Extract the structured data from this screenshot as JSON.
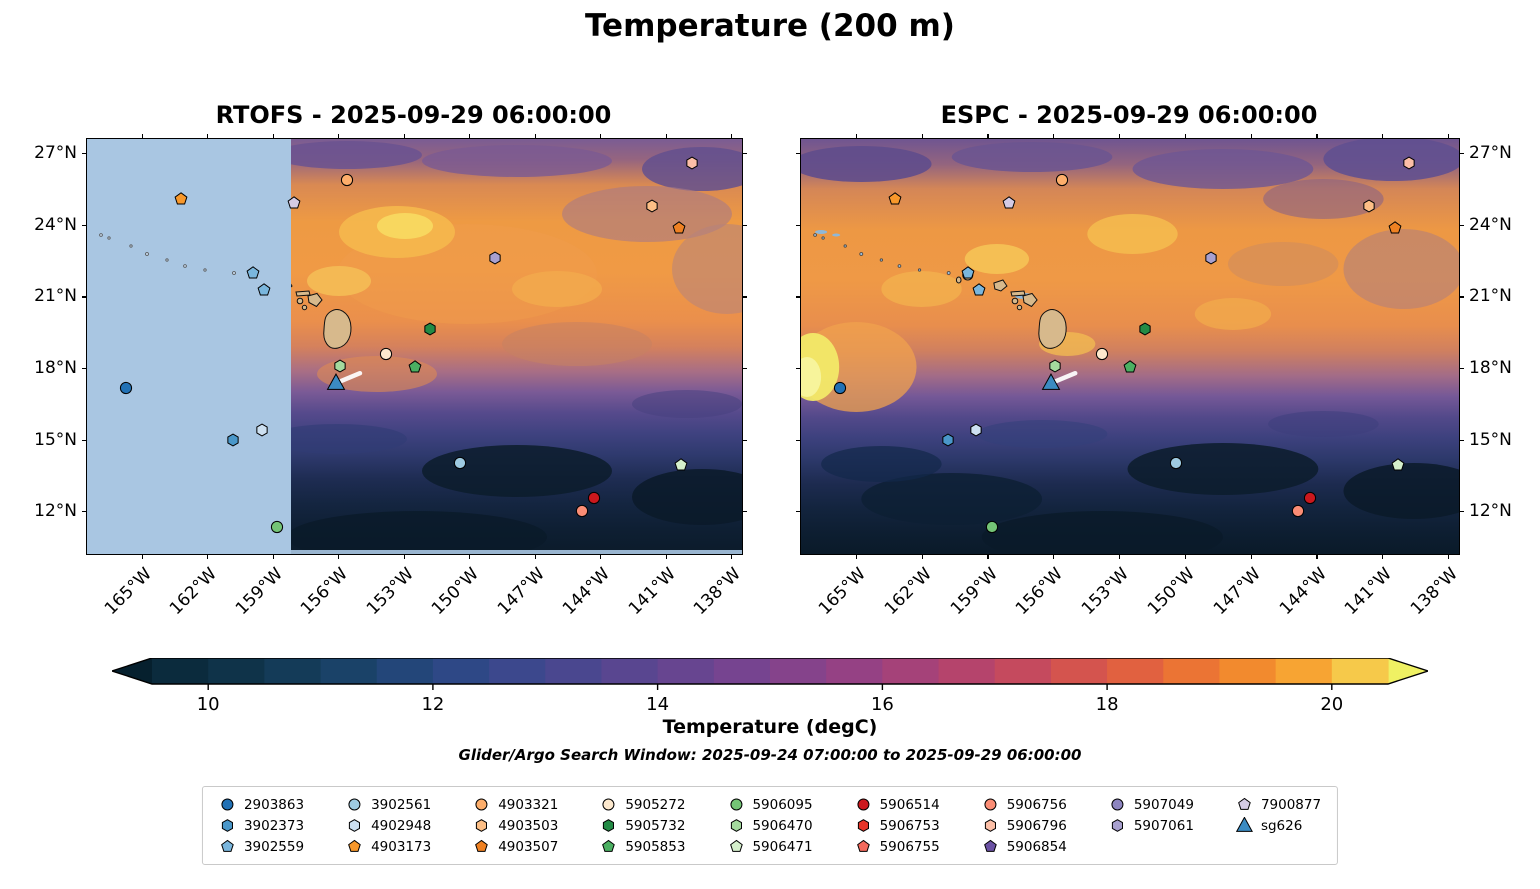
{
  "title": "Temperature (200 m)",
  "subtitle": "Glider/Argo Search Window: 2025-09-24 07:00:00 to 2025-09-29 06:00:00",
  "chart_data": {
    "type": "heatmap",
    "variable": "Temperature",
    "units": "degC",
    "depth": "200 m",
    "search_window": {
      "start": "2025-09-24 07:00:00",
      "end": "2025-09-29 06:00:00"
    },
    "panels": [
      {
        "model": "RTOFS",
        "valid_time": "2025-09-29 06:00:00",
        "title": "RTOFS - 2025-09-29 06:00:00",
        "ylabel_side": "left",
        "has_nodata_region": true
      },
      {
        "model": "ESPC",
        "valid_time": "2025-09-29 06:00:00",
        "title": "ESPC - 2025-09-29 06:00:00",
        "ylabel_side": "right",
        "has_nodata_region": false
      }
    ],
    "axes": {
      "lon_range": [
        -167.5,
        -137.5
      ],
      "lat_range": [
        10.2,
        27.6
      ],
      "lon_tick_values": [
        -165,
        -162,
        -159,
        -156,
        -153,
        -150,
        -147,
        -144,
        -141,
        -138
      ],
      "lon_ticks": [
        "165°W",
        "162°W",
        "159°W",
        "156°W",
        "153°W",
        "150°W",
        "147°W",
        "144°W",
        "141°W",
        "138°W"
      ],
      "lat_tick_values": [
        27,
        24,
        21,
        18,
        15,
        12
      ],
      "lat_ticks": [
        "27°N",
        "24°N",
        "21°N",
        "18°N",
        "15°N",
        "12°N"
      ]
    },
    "colorbar": {
      "label": "Temperature (degC)",
      "vmin": 9.5,
      "vmax": 20.5,
      "ticks": [
        10,
        12,
        14,
        16,
        18,
        20
      ],
      "under_color": "#06202e",
      "over_color": "#eff163",
      "segment_colors": [
        "#0b2b3d",
        "#0f3349",
        "#143b58",
        "#1a4268",
        "#234679",
        "#2e4886",
        "#3c488d",
        "#4a478f",
        "#594690",
        "#674590",
        "#764490",
        "#85438b",
        "#954184",
        "#a54279",
        "#b5446c",
        "#c54a5e",
        "#d4544e",
        "#e16140",
        "#eb7434",
        "#f28a2e",
        "#f7a433",
        "#f6c94a"
      ]
    },
    "platforms": {
      "2903863": {
        "shape": "circle",
        "color": "#2171b5"
      },
      "3902373": {
        "shape": "hexagon",
        "color": "#4a97c9"
      },
      "3902559": {
        "shape": "pentagon",
        "color": "#7ab6dd"
      },
      "3902561": {
        "shape": "circle",
        "color": "#9ecae1"
      },
      "4902948": {
        "shape": "hexagon",
        "color": "#cde0f1"
      },
      "4903173": {
        "shape": "pentagon",
        "color": "#f8982b"
      },
      "4903321": {
        "shape": "circle",
        "color": "#fdae6b"
      },
      "4903503": {
        "shape": "hexagon",
        "color": "#fdbf86"
      },
      "4903507": {
        "shape": "pentagon",
        "color": "#ef8122"
      },
      "5905272": {
        "shape": "circle",
        "color": "#fde9ce"
      },
      "5905732": {
        "shape": "hexagon",
        "color": "#238b45"
      },
      "5905853": {
        "shape": "pentagon",
        "color": "#4bb062"
      },
      "5906095": {
        "shape": "circle",
        "color": "#74c476"
      },
      "5906470": {
        "shape": "hexagon",
        "color": "#a4da9e"
      },
      "5906471": {
        "shape": "pentagon",
        "color": "#d5efcc"
      },
      "5906514": {
        "shape": "circle",
        "color": "#cb181d"
      },
      "5906753": {
        "shape": "hexagon",
        "color": "#e63428"
      },
      "5906755": {
        "shape": "pentagon",
        "color": "#f4695c"
      },
      "5906756": {
        "shape": "circle",
        "color": "#fb8d75"
      },
      "5906796": {
        "shape": "hexagon",
        "color": "#fcbfa7"
      },
      "5906854": {
        "shape": "pentagon",
        "color": "#6a51a3"
      },
      "5907049": {
        "shape": "circle",
        "color": "#8d85c0"
      },
      "5907061": {
        "shape": "hexagon",
        "color": "#a8a0cf"
      },
      "7900877": {
        "shape": "pentagon",
        "color": "#d4cbe5"
      },
      "sg626": {
        "shape": "triangle",
        "color": "#3b8bc2"
      }
    },
    "positions": [
      {
        "id": "4903173",
        "lon": -163.2,
        "lat": 25.1
      },
      {
        "id": "7900877",
        "lon": -158.0,
        "lat": 24.9
      },
      {
        "id": "4903321",
        "lon": -155.6,
        "lat": 25.9
      },
      {
        "id": "5906796",
        "lon": -139.8,
        "lat": 26.6
      },
      {
        "id": "4903503",
        "lon": -141.6,
        "lat": 24.8
      },
      {
        "id": "4903507",
        "lon": -140.4,
        "lat": 23.85
      },
      {
        "id": "5907061",
        "lon": -148.8,
        "lat": 22.6
      },
      {
        "id": "3902559",
        "lon": -159.9,
        "lat": 22.0
      },
      {
        "id": "3902559",
        "lon": -159.4,
        "lat": 21.25
      },
      {
        "id": "5905732",
        "lon": -151.8,
        "lat": 19.65
      },
      {
        "id": "5905272",
        "lon": -153.8,
        "lat": 18.6
      },
      {
        "id": "5905853",
        "lon": -152.5,
        "lat": 18.05
      },
      {
        "id": "5906470",
        "lon": -155.9,
        "lat": 18.1
      },
      {
        "id": "sg626",
        "lon": -156.1,
        "lat": 17.35
      },
      {
        "id": "2903863",
        "lon": -165.7,
        "lat": 17.15
      },
      {
        "id": "3902373",
        "lon": -160.8,
        "lat": 15.0
      },
      {
        "id": "4902948",
        "lon": -159.5,
        "lat": 15.4
      },
      {
        "id": "3902561",
        "lon": -150.4,
        "lat": 14.0
      },
      {
        "id": "5906471",
        "lon": -140.3,
        "lat": 13.95
      },
      {
        "id": "5906514",
        "lon": -144.3,
        "lat": 12.55
      },
      {
        "id": "5906756",
        "lon": -144.85,
        "lat": 12.0
      },
      {
        "id": "5906095",
        "lon": -158.8,
        "lat": 11.35
      }
    ],
    "glider_track": {
      "id": "sg626",
      "lon": [
        -155.95,
        -155.0
      ],
      "lat": [
        17.42,
        17.78
      ]
    }
  },
  "legend": {
    "columns": [
      [
        "2903863",
        "3902373",
        "3902559"
      ],
      [
        "3902561",
        "4902948",
        "4903173"
      ],
      [
        "4903321",
        "4903503",
        "4903507"
      ],
      [
        "5905272",
        "5905732",
        "5905853"
      ],
      [
        "5906095",
        "5906470",
        "5906471"
      ],
      [
        "5906514",
        "5906753",
        "5906755"
      ],
      [
        "5906756",
        "5906796",
        "5906854"
      ],
      [
        "5907049",
        "5907061"
      ],
      [
        "7900877",
        "sg626"
      ]
    ]
  }
}
